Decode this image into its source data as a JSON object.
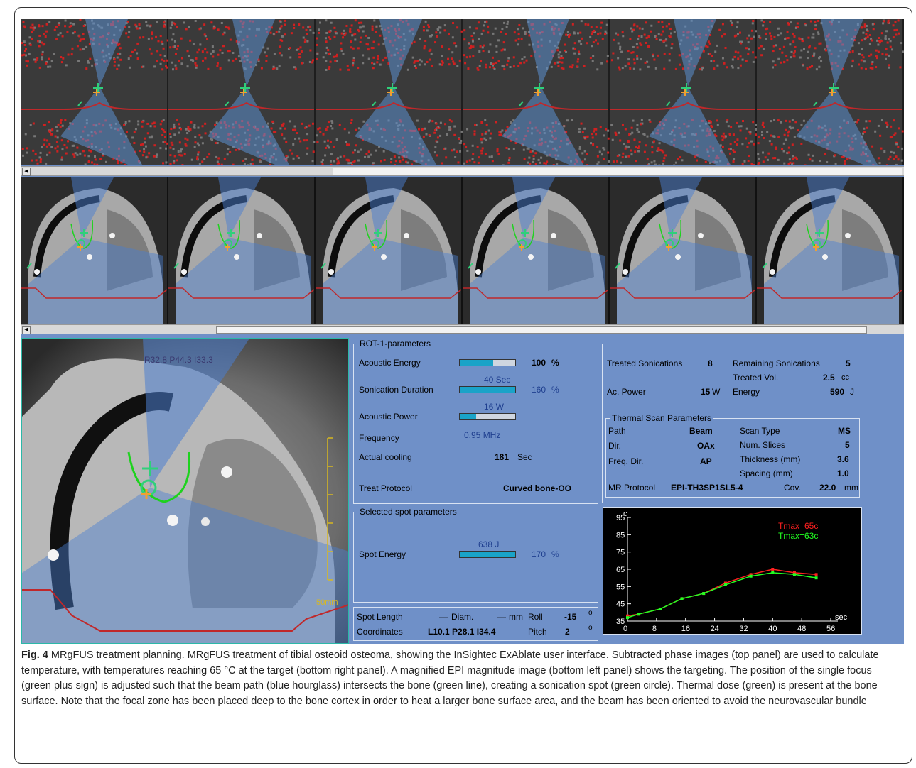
{
  "colors": {
    "panel_bg": "#6f90c8",
    "beam": "#5b8fd0",
    "bone_line": "#c0282a",
    "focus": "#2fd07a",
    "thermal": "#1ed21e",
    "tmax_red": "#ff2020",
    "tmax_green": "#22ff22"
  },
  "magnified": {
    "coord_label": "R32.8 P44.3 I33.3",
    "scale_label": "50mm"
  },
  "rot_params": {
    "legend": "ROT-1-parameters",
    "acoustic_energy": {
      "label": "Acoustic Energy",
      "value": "100",
      "unit": "%",
      "level": 0.6
    },
    "sonication_duration": {
      "label": "Sonication Duration",
      "above": "40 Sec",
      "value": "160",
      "unit": "%",
      "level": 1.0
    },
    "acoustic_power": {
      "label": "Acoustic Power",
      "above": "16 W",
      "level": 0.3
    },
    "frequency": {
      "label": "Frequency",
      "value": "0.95 MHz"
    },
    "actual_cooling": {
      "label": "Actual cooling",
      "value": "181",
      "unit": "Sec"
    },
    "treat_protocol": {
      "label": "Treat Protocol",
      "value": "Curved bone-OO"
    }
  },
  "spot_params": {
    "legend": "Selected spot parameters",
    "spot_energy": {
      "label": "Spot Energy",
      "above": "638 J",
      "value": "170",
      "unit": "%",
      "level": 1.0
    }
  },
  "spot_geom": {
    "spot_length": "Spot Length",
    "dash1": "—",
    "diam": "Diam.",
    "dash2": "—",
    "mm": "mm",
    "roll": "Roll",
    "roll_val": "-15",
    "deg1": "o",
    "coordinates": "Coordinates",
    "coord_val": "L10.1 P28.1 I34.4",
    "pitch": "Pitch",
    "pitch_val": "2",
    "deg2": "o"
  },
  "treatment": {
    "treated_sonications": "Treated Sonications",
    "treated_sonications_val": "8",
    "remaining_sonications": "Remaining Sonications",
    "remaining_sonications_val": "5",
    "treated_vol": "Treated Vol.",
    "treated_vol_val": "2.5",
    "treated_vol_unit": "cc",
    "ac_power": "Ac. Power",
    "ac_power_val": "15",
    "ac_power_unit": "W",
    "energy": "Energy",
    "energy_val": "590",
    "energy_unit": "J"
  },
  "thermal_scan": {
    "legend": "Thermal Scan Parameters",
    "path": "Path",
    "path_val": "Beam",
    "scan_type": "Scan Type",
    "scan_type_val": "MS",
    "dir": "Dir.",
    "dir_val": "OAx",
    "num_slices": "Num. Slices",
    "num_slices_val": "5",
    "thickness": "Thickness (mm)",
    "thickness_val": "3.6",
    "freq_dir": "Freq. Dir.",
    "freq_dir_val": "AP",
    "spacing": "Spacing (mm)",
    "spacing_val": "1.0",
    "mr_protocol": "MR Protocol",
    "mr_protocol_val": "EPI-TH3SP1SL5-4",
    "cov": "Cov.",
    "cov_val": "22.0",
    "cov_unit": "mm"
  },
  "chart_data": {
    "type": "line",
    "ylabel": "c",
    "xlabel": "sec",
    "xlim": [
      0,
      56
    ],
    "ylim": [
      35,
      95
    ],
    "xticks": [
      0,
      8,
      16,
      24,
      32,
      40,
      48,
      56
    ],
    "yticks": [
      35,
      45,
      55,
      65,
      75,
      85,
      95
    ],
    "series": [
      {
        "name": "Tmax=65c",
        "color": "#ff2020",
        "x": [
          0,
          3,
          9,
          15,
          21,
          27,
          34,
          40,
          46,
          52
        ],
        "y": [
          38,
          39,
          42,
          48,
          51,
          57,
          62,
          65,
          63,
          62
        ]
      },
      {
        "name": "Tmax=63c",
        "color": "#22ff22",
        "x": [
          0,
          3,
          9,
          15,
          21,
          27,
          34,
          40,
          46,
          52
        ],
        "y": [
          37,
          39,
          42,
          48,
          51,
          56,
          61,
          63,
          62,
          60
        ]
      }
    ]
  },
  "caption": {
    "fig": "Fig. 4",
    "text": " MRgFUS treatment planning. MRgFUS treatment of tibial osteoid osteoma, showing the InSightec ExAblate user interface. Subtracted phase images (top panel) are used to calculate temperature, with temperatures reaching 65 °C at the target (bottom right panel). A magnified EPI magnitude image (bottom left panel) shows the targeting. The position of the single focus (green plus sign) is adjusted such that the beam path (blue hourglass) intersects the bone (green line), creating a sonication spot (green circle). Thermal dose (green) is present at the bone surface. Note that the focal zone has been placed deep to the bone cortex in order to heat a larger bone surface area, and the beam has been oriented to avoid the neurovascular bundle"
  }
}
